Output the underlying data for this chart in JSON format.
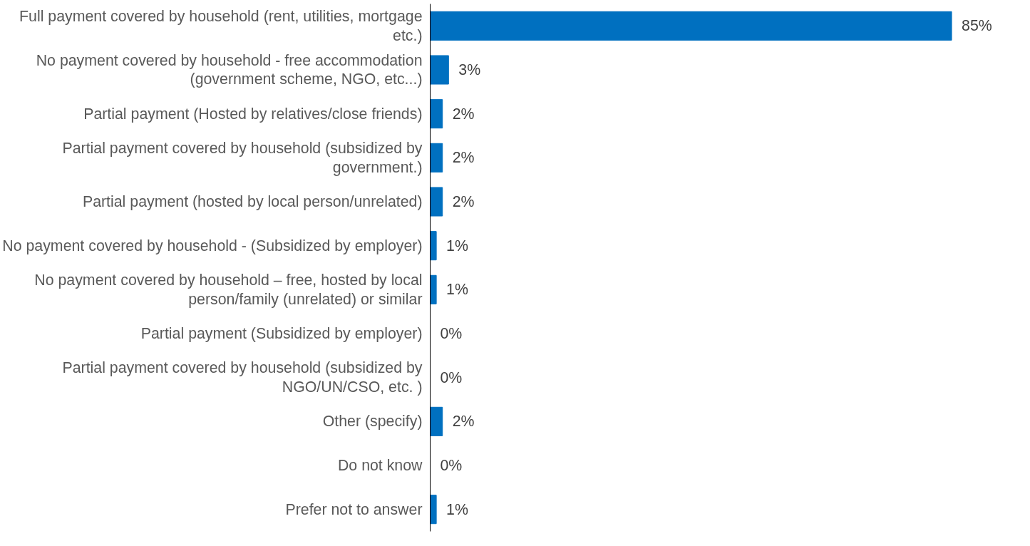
{
  "chart_data": {
    "type": "bar",
    "orientation": "horizontal",
    "categories": [
      "Full payment covered by household (rent, utilities, mortgage etc.)",
      "No payment covered by household - free accommodation (government scheme, NGO, etc...)",
      "Partial payment (Hosted by relatives/close friends)",
      "Partial payment covered by household (subsidized by government.)",
      "Partial payment (hosted by local person/unrelated)",
      "No payment covered by household - (Subsidized by employer)",
      "No payment covered by household – free, hosted by local person/family (unrelated) or similar",
      "Partial payment (Subsidized by employer)",
      "Partial payment covered by household (subsidized by NGO/UN/CSO, etc. )",
      "Other (specify)",
      "Do not know",
      "Prefer not to answer"
    ],
    "values": [
      85,
      3,
      2,
      2,
      2,
      1,
      1,
      0,
      0,
      2,
      0,
      1
    ],
    "value_labels": [
      "85%",
      "3%",
      "2%",
      "2%",
      "2%",
      "1%",
      "1%",
      "0%",
      "0%",
      "2%",
      "0%",
      "1%"
    ],
    "color": "#0070c0"
  }
}
